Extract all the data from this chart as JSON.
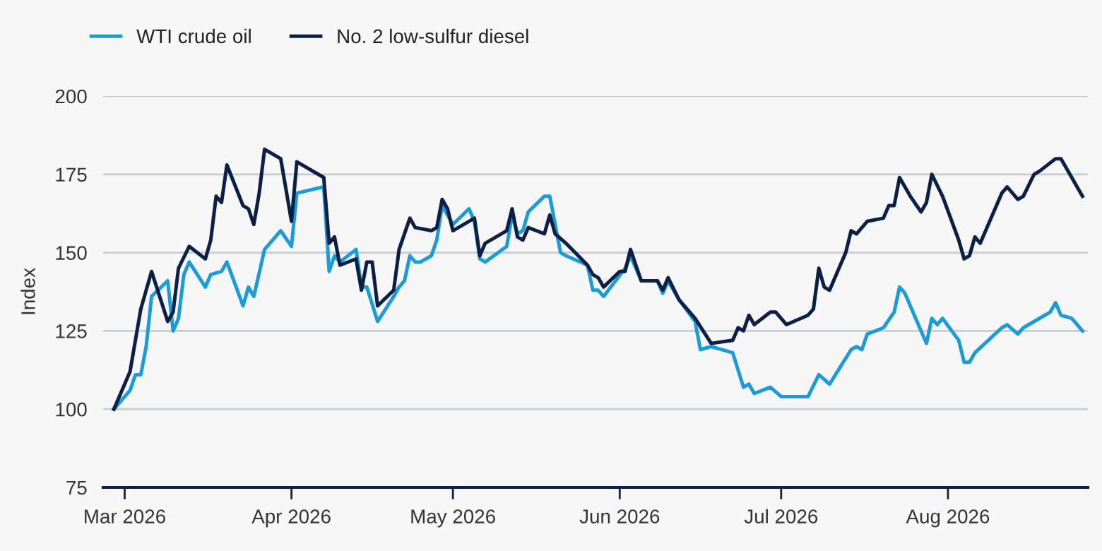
{
  "chart_data": {
    "type": "line",
    "ylabel": "Index",
    "legend": "top left",
    "grid": "y",
    "marker": "none",
    "line_style": "solid",
    "xlim": [
      "2026-02-25",
      "2026-08-27"
    ],
    "ylim": [
      75,
      200
    ],
    "yticks": [
      75,
      100,
      125,
      150,
      175,
      200
    ],
    "xticks": [
      {
        "value": "2026-03-01",
        "label": "Mar 2026"
      },
      {
        "value": "2026-04-01",
        "label": "Apr 2026"
      },
      {
        "value": "2026-05-01",
        "label": "May 2026"
      },
      {
        "value": "2026-06-01",
        "label": "Jun 2026"
      },
      {
        "value": "2026-07-01",
        "label": "Jul 2026"
      },
      {
        "value": "2026-08-01",
        "label": "Aug 2026"
      }
    ],
    "series": [
      {
        "name": "WTI crude oil",
        "color": "#1b9bd7",
        "x": [
          "2026-02-27",
          "2026-03-02",
          "2026-03-03",
          "2026-03-04",
          "2026-03-05",
          "2026-03-06",
          "2026-03-09",
          "2026-03-10",
          "2026-03-11",
          "2026-03-12",
          "2026-03-13",
          "2026-03-16",
          "2026-03-17",
          "2026-03-19",
          "2026-03-20",
          "2026-03-23",
          "2026-03-24",
          "2026-03-25",
          "2026-03-27",
          "2026-03-30",
          "2026-04-01",
          "2026-04-02",
          "2026-04-07",
          "2026-04-08",
          "2026-04-09",
          "2026-04-10",
          "2026-04-13",
          "2026-04-14",
          "2026-04-15",
          "2026-04-17",
          "2026-04-20",
          "2026-04-21",
          "2026-04-22",
          "2026-04-23",
          "2026-04-24",
          "2026-04-25",
          "2026-04-27",
          "2026-04-28",
          "2026-04-29",
          "2026-05-01",
          "2026-05-04",
          "2026-05-05",
          "2026-05-06",
          "2026-05-07",
          "2026-05-11",
          "2026-05-12",
          "2026-05-13",
          "2026-05-14",
          "2026-05-15",
          "2026-05-18",
          "2026-05-19",
          "2026-05-21",
          "2026-05-22",
          "2026-05-26",
          "2026-05-27",
          "2026-05-28",
          "2026-05-29",
          "2026-06-02",
          "2026-06-03",
          "2026-06-05",
          "2026-06-08",
          "2026-06-09",
          "2026-06-10",
          "2026-06-12",
          "2026-06-15",
          "2026-06-16",
          "2026-06-18",
          "2026-06-22",
          "2026-06-24",
          "2026-06-25",
          "2026-06-26",
          "2026-06-29",
          "2026-07-01",
          "2026-07-06",
          "2026-07-08",
          "2026-07-10",
          "2026-07-14",
          "2026-07-15",
          "2026-07-16",
          "2026-07-17",
          "2026-07-20",
          "2026-07-22",
          "2026-07-23",
          "2026-07-24",
          "2026-07-28",
          "2026-07-29",
          "2026-07-30",
          "2026-07-31",
          "2026-08-03",
          "2026-08-04",
          "2026-08-05",
          "2026-08-06",
          "2026-08-11",
          "2026-08-12",
          "2026-08-14",
          "2026-08-15",
          "2026-08-19",
          "2026-08-20",
          "2026-08-21",
          "2026-08-22",
          "2026-08-24",
          "2026-08-26"
        ],
        "values": [
          100,
          106,
          111,
          111,
          120,
          136,
          141,
          125,
          129,
          143,
          147,
          139,
          143,
          144,
          147,
          133,
          139,
          136,
          151,
          157,
          152,
          169,
          171,
          144,
          149,
          147,
          151,
          139,
          139,
          128,
          136,
          139,
          141,
          149,
          147,
          147,
          149,
          154,
          165,
          159,
          164,
          160,
          148,
          147,
          152,
          162,
          156,
          157,
          163,
          168,
          168,
          150,
          149,
          146,
          138,
          138,
          136,
          145,
          149,
          141,
          141,
          137,
          141,
          135,
          128,
          119,
          120,
          118,
          107,
          108,
          105,
          107,
          104,
          104,
          111,
          108,
          119,
          120,
          119,
          124,
          126,
          131,
          139,
          137,
          121,
          129,
          127,
          129,
          122,
          115,
          115,
          118,
          126,
          127,
          124,
          126,
          130,
          131,
          134,
          130,
          129,
          125
        ]
      },
      {
        "name": "No. 2 low-sulfur diesel",
        "color": "#0c1f45",
        "x": [
          "2026-02-27",
          "2026-03-02",
          "2026-03-04",
          "2026-03-06",
          "2026-03-09",
          "2026-03-10",
          "2026-03-11",
          "2026-03-13",
          "2026-03-16",
          "2026-03-17",
          "2026-03-18",
          "2026-03-19",
          "2026-03-20",
          "2026-03-23",
          "2026-03-24",
          "2026-03-25",
          "2026-03-26",
          "2026-03-27",
          "2026-03-30",
          "2026-04-01",
          "2026-04-02",
          "2026-04-07",
          "2026-04-08",
          "2026-04-09",
          "2026-04-10",
          "2026-04-13",
          "2026-04-14",
          "2026-04-15",
          "2026-04-16",
          "2026-04-17",
          "2026-04-20",
          "2026-04-21",
          "2026-04-23",
          "2026-04-24",
          "2026-04-27",
          "2026-04-28",
          "2026-04-29",
          "2026-04-30",
          "2026-05-01",
          "2026-05-05",
          "2026-05-06",
          "2026-05-07",
          "2026-05-11",
          "2026-05-12",
          "2026-05-13",
          "2026-05-14",
          "2026-05-15",
          "2026-05-18",
          "2026-05-19",
          "2026-05-20",
          "2026-05-22",
          "2026-05-26",
          "2026-05-27",
          "2026-05-28",
          "2026-05-29",
          "2026-06-01",
          "2026-06-02",
          "2026-06-03",
          "2026-06-05",
          "2026-06-08",
          "2026-06-09",
          "2026-06-10",
          "2026-06-12",
          "2026-06-15",
          "2026-06-18",
          "2026-06-22",
          "2026-06-23",
          "2026-06-24",
          "2026-06-25",
          "2026-06-26",
          "2026-06-29",
          "2026-06-30",
          "2026-07-02",
          "2026-07-06",
          "2026-07-07",
          "2026-07-08",
          "2026-07-09",
          "2026-07-10",
          "2026-07-13",
          "2026-07-14",
          "2026-07-15",
          "2026-07-17",
          "2026-07-20",
          "2026-07-21",
          "2026-07-22",
          "2026-07-23",
          "2026-07-25",
          "2026-07-27",
          "2026-07-28",
          "2026-07-29",
          "2026-07-31",
          "2026-08-03",
          "2026-08-04",
          "2026-08-05",
          "2026-08-06",
          "2026-08-07",
          "2026-08-11",
          "2026-08-12",
          "2026-08-14",
          "2026-08-15",
          "2026-08-17",
          "2026-08-18",
          "2026-08-21",
          "2026-08-22",
          "2026-08-26"
        ],
        "values": [
          100,
          112,
          132,
          144,
          128,
          131,
          145,
          152,
          148,
          154,
          168,
          166,
          178,
          165,
          164,
          159,
          169,
          183,
          180,
          160,
          179,
          174,
          153,
          155,
          146,
          148,
          138,
          147,
          147,
          133,
          138,
          151,
          161,
          158,
          157,
          158,
          167,
          164,
          157,
          161,
          149,
          153,
          157,
          164,
          155,
          154,
          158,
          156,
          162,
          156,
          153,
          146,
          143,
          142,
          139,
          144,
          144,
          151,
          141,
          141,
          138,
          142,
          135,
          129,
          121,
          122,
          126,
          125,
          130,
          127,
          131,
          131,
          127,
          130,
          132,
          145,
          139,
          138,
          150,
          157,
          156,
          160,
          161,
          165,
          165,
          174,
          168,
          163,
          166,
          175,
          168,
          154,
          148,
          149,
          155,
          153,
          169,
          171,
          167,
          168,
          175,
          176,
          180,
          180,
          168
        ]
      }
    ]
  }
}
